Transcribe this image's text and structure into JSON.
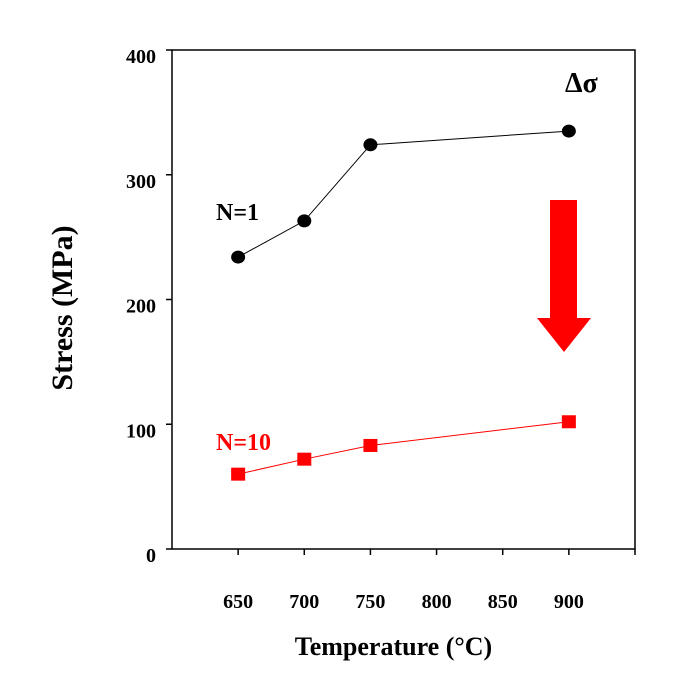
{
  "chart_data": {
    "type": "line",
    "title": "",
    "xlabel": "Temperature (°C)",
    "ylabel": "Stress (MPa)",
    "xlim": [
      600,
      950
    ],
    "ylim": [
      0,
      400
    ],
    "xticks": [
      650,
      700,
      750,
      800,
      850,
      900
    ],
    "yticks": [
      0,
      100,
      200,
      300,
      400
    ],
    "grid": false,
    "series": [
      {
        "name": "N=1",
        "color": "#000000",
        "marker": "circle",
        "x": [
          650,
          700,
          750,
          900
        ],
        "y": [
          234,
          263,
          324,
          335
        ]
      },
      {
        "name": "N=10",
        "color": "#ff0000",
        "marker": "square",
        "x": [
          650,
          700,
          750,
          900
        ],
        "y": [
          60,
          72,
          83,
          102
        ]
      }
    ],
    "annotations": [
      {
        "text": "Δσ",
        "color": "#000000"
      },
      {
        "text": "down-arrow",
        "color": "#ff0000"
      }
    ]
  }
}
